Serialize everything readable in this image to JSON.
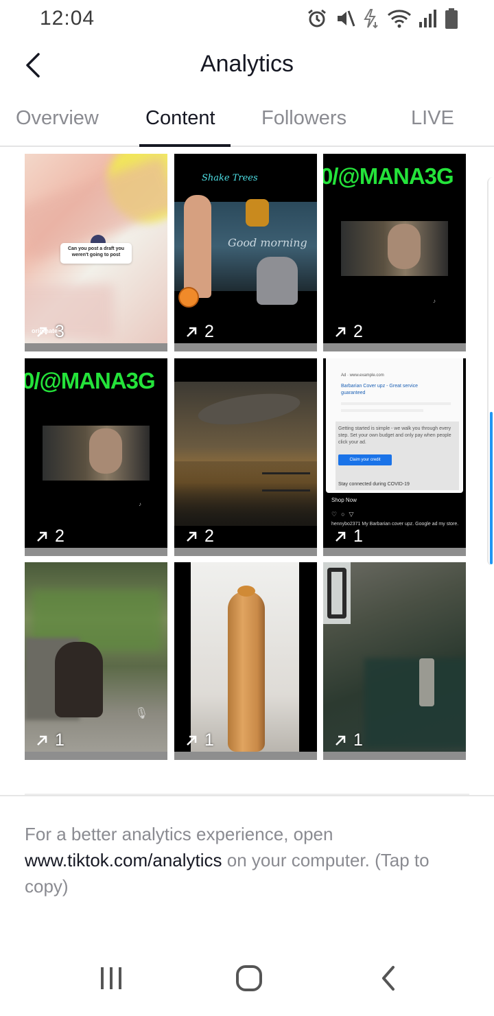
{
  "status_bar": {
    "time": "12:04",
    "battery_icon": "battery-icon"
  },
  "header": {
    "title": "Analytics",
    "back_icon": "chevron-left-icon"
  },
  "tabs": [
    {
      "label": "Overview",
      "active": false
    },
    {
      "label": "Content",
      "active": true
    },
    {
      "label": "Followers",
      "active": false
    },
    {
      "label": "LIVE",
      "active": false
    }
  ],
  "videos": [
    {
      "count": "3",
      "overlay_text": "Can you post a draft you weren't going to post",
      "badge": "originate"
    },
    {
      "count": "2",
      "overlay_text": "Good morning",
      "brand": "Shake Trees"
    },
    {
      "count": "2",
      "overlay_text": "0/@MANA3G"
    },
    {
      "count": "2",
      "overlay_text": "0/@MANA3G"
    },
    {
      "count": "2"
    },
    {
      "count": "1",
      "ad_host": "Ad · www.example.com",
      "ad_title": "Barbarian Cover upz - Great service guaranteed",
      "ad_body": "Getting started is simple - we walk you through every step. Set your own budget and only pay when people click your ad.",
      "ad_button": "Claim your credit",
      "ad_footer": "Stay connected during COVID-19",
      "shop_now": "Shop Now",
      "caption": "hennybo2371 My Barbarian cover upz. Google ad my store."
    },
    {
      "count": "1"
    },
    {
      "count": "1"
    },
    {
      "count": "1"
    }
  ],
  "footer": {
    "prefix": "For a better analytics experience, open ",
    "link": "www.tiktok.com/analytics",
    "suffix": " on your computer. (Tap to copy)"
  },
  "colors": {
    "text": "#161823",
    "muted": "#8a8b91",
    "accent": "#2196f3"
  }
}
